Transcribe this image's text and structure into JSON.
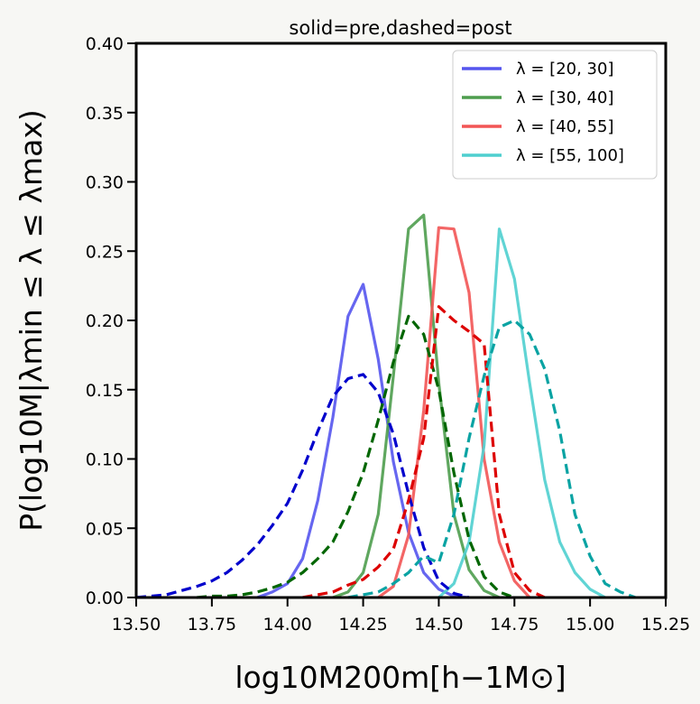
{
  "chart_data": {
    "type": "line",
    "title": "solid=pre,dashed=post",
    "xlabel": "log10M200m[h−1M⊙]",
    "ylabel": "P(log10M|λmin ≤ λ ≤ λmax)",
    "xlim": [
      13.5,
      15.25
    ],
    "ylim": [
      0.0,
      0.4
    ],
    "xticks": [
      "13.50",
      "13.75",
      "14.00",
      "14.25",
      "14.50",
      "14.75",
      "15.00",
      "15.25"
    ],
    "yticks": [
      "0.00",
      "0.05",
      "0.10",
      "0.15",
      "0.20",
      "0.25",
      "0.30",
      "0.35",
      "0.40"
    ],
    "grid": false,
    "legend_position": "top-right",
    "legend": [
      {
        "label": "λ = [20, 30]",
        "color": "#5555ee"
      },
      {
        "label": "λ = [30, 40]",
        "color": "#4e9d4e"
      },
      {
        "label": "λ = [40, 55]",
        "color": "#f25555"
      },
      {
        "label": "λ = [55, 100]",
        "color": "#4fcfcf"
      }
    ],
    "series": [
      {
        "group": "λ = [20, 30]",
        "style": "solid",
        "color": "#5555ee",
        "x": [
          13.9,
          13.95,
          14.0,
          14.05,
          14.1,
          14.15,
          14.2,
          14.25,
          14.3,
          14.35,
          14.4,
          14.45,
          14.5,
          14.55,
          14.6
        ],
        "y": [
          0.0,
          0.004,
          0.01,
          0.028,
          0.07,
          0.13,
          0.203,
          0.226,
          0.172,
          0.098,
          0.047,
          0.018,
          0.006,
          0.001,
          0.0
        ]
      },
      {
        "group": "λ = [30, 40]",
        "style": "solid",
        "color": "#4e9d4e",
        "x": [
          14.15,
          14.2,
          14.25,
          14.3,
          14.35,
          14.4,
          14.45,
          14.5,
          14.55,
          14.6,
          14.65,
          14.7
        ],
        "y": [
          0.0,
          0.004,
          0.018,
          0.06,
          0.16,
          0.266,
          0.276,
          0.155,
          0.06,
          0.02,
          0.005,
          0.0
        ]
      },
      {
        "group": "λ = [40, 55]",
        "style": "solid",
        "color": "#f25555",
        "x": [
          14.3,
          14.35,
          14.4,
          14.45,
          14.5,
          14.55,
          14.6,
          14.65,
          14.7,
          14.75,
          14.8
        ],
        "y": [
          0.0,
          0.008,
          0.045,
          0.135,
          0.267,
          0.266,
          0.22,
          0.1,
          0.04,
          0.012,
          0.0
        ]
      },
      {
        "group": "λ = [55, 100]",
        "style": "solid",
        "color": "#4fcfcf",
        "x": [
          14.5,
          14.55,
          14.6,
          14.65,
          14.7,
          14.75,
          14.8,
          14.85,
          14.9,
          14.95,
          15.0,
          15.05
        ],
        "y": [
          0.0,
          0.01,
          0.04,
          0.11,
          0.266,
          0.23,
          0.155,
          0.085,
          0.04,
          0.018,
          0.006,
          0.0
        ]
      },
      {
        "group": "λ = [20, 30]",
        "style": "dashed",
        "color": "#0000cc",
        "x": [
          13.5,
          13.55,
          13.6,
          13.65,
          13.7,
          13.75,
          13.8,
          13.85,
          13.9,
          13.95,
          14.0,
          14.05,
          14.1,
          14.15,
          14.2,
          14.25,
          14.3,
          14.35,
          14.4,
          14.45,
          14.5,
          14.55,
          14.6
        ],
        "y": [
          0.0,
          0.001,
          0.002,
          0.005,
          0.008,
          0.012,
          0.018,
          0.027,
          0.038,
          0.052,
          0.068,
          0.092,
          0.12,
          0.145,
          0.158,
          0.161,
          0.148,
          0.118,
          0.075,
          0.036,
          0.012,
          0.003,
          0.0
        ]
      },
      {
        "group": "λ = [30, 40]",
        "style": "dashed",
        "color": "#006600",
        "x": [
          13.7,
          13.75,
          13.8,
          13.85,
          13.9,
          13.95,
          14.0,
          14.05,
          14.1,
          14.15,
          14.2,
          14.25,
          14.3,
          14.35,
          14.4,
          14.45,
          14.5,
          14.55,
          14.6,
          14.65,
          14.7,
          14.75
        ],
        "y": [
          0.0,
          0.001,
          0.001,
          0.002,
          0.004,
          0.007,
          0.011,
          0.018,
          0.028,
          0.04,
          0.062,
          0.09,
          0.128,
          0.17,
          0.203,
          0.19,
          0.15,
          0.09,
          0.042,
          0.015,
          0.004,
          0.0
        ]
      },
      {
        "group": "λ = [40, 55]",
        "style": "dashed",
        "color": "#dd0000",
        "x": [
          14.05,
          14.1,
          14.15,
          14.2,
          14.25,
          14.3,
          14.35,
          14.4,
          14.45,
          14.5,
          14.55,
          14.6,
          14.65,
          14.7,
          14.75,
          14.8,
          14.85
        ],
        "y": [
          0.0,
          0.002,
          0.004,
          0.009,
          0.013,
          0.022,
          0.035,
          0.07,
          0.115,
          0.21,
          0.2,
          0.192,
          0.183,
          0.06,
          0.018,
          0.005,
          0.0
        ]
      },
      {
        "group": "λ = [55, 100]",
        "style": "dashed",
        "color": "#0aa3a3",
        "x": [
          14.2,
          14.25,
          14.3,
          14.35,
          14.4,
          14.45,
          14.5,
          14.55,
          14.6,
          14.65,
          14.7,
          14.75,
          14.8,
          14.85,
          14.9,
          14.95,
          15.0,
          15.05,
          15.1,
          15.15
        ],
        "y": [
          0.0,
          0.002,
          0.004,
          0.01,
          0.018,
          0.03,
          0.025,
          0.06,
          0.115,
          0.16,
          0.195,
          0.2,
          0.19,
          0.165,
          0.12,
          0.06,
          0.03,
          0.01,
          0.004,
          0.0
        ]
      }
    ]
  }
}
